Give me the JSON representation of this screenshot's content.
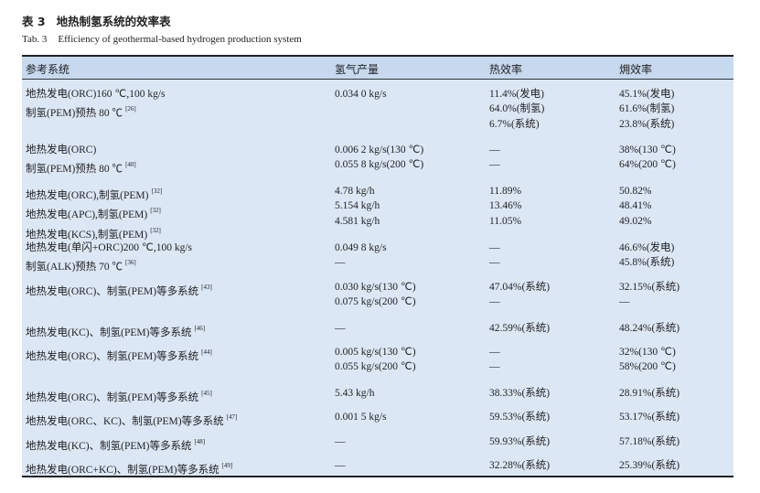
{
  "caption": {
    "cn_number": "表 3",
    "cn_title": "地热制氢系统的效率表",
    "en_number": "Tab. 3",
    "en_title": "Efficiency of geothermal-based hydrogen production system"
  },
  "table": {
    "headers": [
      "参考系统",
      "氢气产量",
      "热效率",
      "㶲效率"
    ],
    "groups": [
      {
        "system": [
          {
            "t": "地热发电(ORC)160 ℃,100 kg/s",
            "ref": ""
          },
          {
            "t": "制氢(PEM)预热 80 ℃",
            "ref": "[26]"
          }
        ],
        "h2": [
          "0.034 0 kg/s"
        ],
        "thermal": [
          "11.4%(发电)",
          "64.0%(制氢)",
          "6.7%(系统)"
        ],
        "exergy": [
          "45.1%(发电)",
          "61.6%(制氢)",
          "23.8%(系统)"
        ]
      },
      {
        "system": [
          {
            "t": "地热发电(ORC)",
            "ref": ""
          },
          {
            "t": "制氢(PEM)预热 80 ℃",
            "ref": "[40]"
          }
        ],
        "h2": [
          "0.006 2 kg/s(130 ℃)",
          "0.055 8 kg/s(200 ℃)"
        ],
        "thermal": [
          "—",
          "—"
        ],
        "exergy": [
          "38%(130 ℃)",
          "64%(200 ℃)"
        ]
      },
      {
        "system": [
          {
            "t": "地热发电(ORC),制氢(PEM)",
            "ref": "[32]"
          },
          {
            "t": "地热发电(APC),制氢(PEM)",
            "ref": "[32]"
          },
          {
            "t": "地热发电(KCS),制氢(PEM)",
            "ref": "[32]"
          }
        ],
        "h2": [
          "4.78 kg/h",
          "5.154 kg/h",
          "4.581 kg/h"
        ],
        "thermal": [
          "11.89%",
          "13.46%",
          "11.05%"
        ],
        "exergy": [
          "50.82%",
          "48.41%",
          "49.02%"
        ]
      },
      {
        "system": [
          {
            "t": "地热发电(单闪+ORC)200 ℃,100 kg/s",
            "ref": ""
          },
          {
            "t": "制氢(ALK)预热 70 ℃",
            "ref": "[36]"
          }
        ],
        "h2": [
          "0.049 8 kg/s",
          "—"
        ],
        "thermal": [
          "—",
          "—"
        ],
        "exergy": [
          "46.6%(发电)",
          "45.8%(系统)"
        ]
      },
      {
        "system": [
          {
            "t": "地热发电(ORC)、制氢(PEM)等多系统",
            "ref": "[43]"
          }
        ],
        "h2": [
          "0.030 kg/s(130 ℃)",
          "0.075 kg/s(200 ℃)"
        ],
        "thermal": [
          "47.04%(系统)",
          "—"
        ],
        "exergy": [
          "32.15%(系统)",
          "—"
        ]
      },
      {
        "system": [
          {
            "t": "地热发电(KC)、制氢(PEM)等多系统",
            "ref": "[46]"
          }
        ],
        "h2": [
          "—"
        ],
        "thermal": [
          "42.59%(系统)"
        ],
        "exergy": [
          "48.24%(系统)"
        ]
      },
      {
        "system": [
          {
            "t": "地热发电(ORC)、制氢(PEM)等多系统",
            "ref": "[44]"
          }
        ],
        "h2": [
          "0.005 kg/s(130 ℃)",
          "0.055 kg/s(200 ℃)"
        ],
        "thermal": [
          "—",
          "—"
        ],
        "exergy": [
          "32%(130 ℃)",
          "58%(200 ℃)"
        ]
      },
      {
        "system": [
          {
            "t": "地热发电(ORC)、制氢(PEM)等多系统",
            "ref": "[45]"
          }
        ],
        "h2": [
          "5.43 kg/h"
        ],
        "thermal": [
          "38.33%(系统)"
        ],
        "exergy": [
          "28.91%(系统)"
        ]
      },
      {
        "system": [
          {
            "t": "地热发电(ORC、KC)、制氢(PEM)等多系统",
            "ref": "[47]"
          }
        ],
        "h2": [
          "0.001 5 kg/s"
        ],
        "thermal": [
          "59.53%(系统)"
        ],
        "exergy": [
          "53.17%(系统)"
        ]
      },
      {
        "system": [
          {
            "t": "地热发电(KC)、制氢(PEM)等多系统",
            "ref": "[48]"
          }
        ],
        "h2": [
          "—"
        ],
        "thermal": [
          "59.93%(系统)"
        ],
        "exergy": [
          "57.18%(系统)"
        ]
      },
      {
        "system": [
          {
            "t": "地热发电(ORC+KC)、制氢(PEM)等多系统",
            "ref": "[49]"
          }
        ],
        "h2": [
          "—"
        ],
        "thermal": [
          "32.28%(系统)"
        ],
        "exergy": [
          "25.39%(系统)"
        ]
      }
    ]
  },
  "colors": {
    "header_bg": "#c6d9ef",
    "body_bg": "#dce7f5"
  }
}
